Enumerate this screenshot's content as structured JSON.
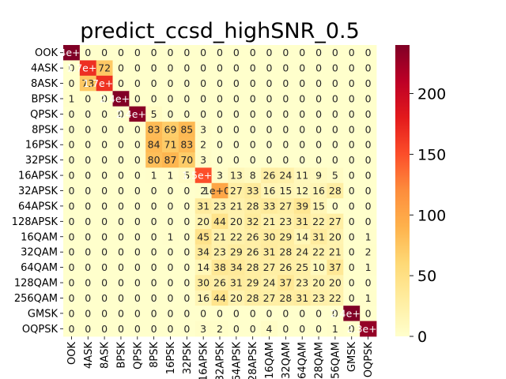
{
  "chart_data": {
    "type": "heatmap",
    "title": "predict_ccsd_highSNR_0.5",
    "xlabel": "",
    "ylabel": "",
    "x_categories": [
      "OOK",
      "4ASK",
      "8ASK",
      "BPSK",
      "QPSK",
      "8PSK",
      "16PSK",
      "32PSK",
      "16APSK",
      "32APSK",
      "64APSK",
      "128APSK",
      "16QAM",
      "32QAM",
      "64QAM",
      "128QAM",
      "256QAM",
      "GMSK",
      "OQPSK"
    ],
    "y_categories": [
      "OOK",
      "4ASK",
      "8ASK",
      "BPSK",
      "QPSK",
      "8PSK",
      "16PSK",
      "32PSK",
      "16APSK",
      "32APSK",
      "64APSK",
      "128APSK",
      "16QAM",
      "32QAM",
      "64QAM",
      "128QAM",
      "256QAM",
      "GMSK",
      "OQPSK"
    ],
    "values": [
      [
        240,
        0,
        0,
        0,
        0,
        0,
        0,
        0,
        0,
        0,
        0,
        0,
        0,
        0,
        0,
        0,
        0,
        0,
        0
      ],
      [
        0,
        168,
        72,
        0,
        0,
        0,
        0,
        0,
        0,
        0,
        0,
        0,
        0,
        0,
        0,
        0,
        0,
        0,
        0
      ],
      [
        0,
        73,
        167,
        0,
        0,
        0,
        0,
        0,
        0,
        0,
        0,
        0,
        0,
        0,
        0,
        0,
        0,
        0,
        0
      ],
      [
        1,
        0,
        0,
        239,
        0,
        0,
        0,
        0,
        0,
        0,
        0,
        0,
        0,
        0,
        0,
        0,
        0,
        0,
        0
      ],
      [
        0,
        0,
        0,
        0,
        235,
        5,
        0,
        0,
        0,
        0,
        0,
        0,
        0,
        0,
        0,
        0,
        0,
        0,
        0
      ],
      [
        0,
        0,
        0,
        0,
        0,
        83,
        69,
        85,
        3,
        0,
        0,
        0,
        0,
        0,
        0,
        0,
        0,
        0,
        0
      ],
      [
        0,
        0,
        0,
        0,
        0,
        84,
        71,
        83,
        2,
        0,
        0,
        0,
        0,
        0,
        0,
        0,
        0,
        0,
        0
      ],
      [
        0,
        0,
        0,
        0,
        0,
        80,
        87,
        70,
        3,
        0,
        0,
        0,
        0,
        0,
        0,
        0,
        0,
        0,
        0
      ],
      [
        0,
        0,
        0,
        0,
        0,
        1,
        1,
        5,
        150,
        3,
        13,
        8,
        26,
        24,
        11,
        9,
        5,
        0,
        0
      ],
      [
        0,
        0,
        0,
        0,
        0,
        0,
        0,
        0,
        2,
        100,
        27,
        33,
        16,
        15,
        12,
        16,
        28,
        0,
        0
      ],
      [
        0,
        0,
        0,
        0,
        0,
        0,
        0,
        0,
        31,
        23,
        21,
        28,
        33,
        27,
        39,
        15,
        0,
        0,
        0
      ],
      [
        0,
        0,
        0,
        0,
        0,
        0,
        0,
        0,
        20,
        44,
        20,
        32,
        21,
        23,
        31,
        22,
        27,
        0,
        0
      ],
      [
        0,
        0,
        0,
        0,
        0,
        0,
        1,
        0,
        45,
        21,
        22,
        26,
        30,
        29,
        14,
        31,
        20,
        0,
        1
      ],
      [
        0,
        0,
        0,
        0,
        0,
        0,
        0,
        0,
        34,
        23,
        29,
        26,
        31,
        28,
        24,
        22,
        21,
        0,
        2
      ],
      [
        0,
        0,
        0,
        0,
        0,
        0,
        0,
        0,
        14,
        38,
        34,
        28,
        27,
        26,
        25,
        10,
        37,
        0,
        1
      ],
      [
        0,
        0,
        0,
        0,
        0,
        0,
        0,
        0,
        30,
        26,
        31,
        29,
        24,
        37,
        23,
        20,
        20,
        0,
        0
      ],
      [
        0,
        0,
        0,
        0,
        0,
        0,
        0,
        0,
        16,
        44,
        20,
        28,
        27,
        28,
        31,
        23,
        22,
        0,
        1
      ],
      [
        0,
        0,
        0,
        0,
        0,
        0,
        0,
        0,
        0,
        0,
        0,
        0,
        0,
        0,
        0,
        0,
        0,
        240,
        0
      ],
      [
        0,
        0,
        0,
        0,
        0,
        0,
        0,
        0,
        3,
        2,
        0,
        0,
        4,
        0,
        0,
        0,
        1,
        0,
        230
      ]
    ],
    "cell_labels": [
      [
        "2.4e+02",
        "0",
        "0",
        "0",
        "0",
        "0",
        "0",
        "0",
        "0",
        "0",
        "0",
        "0",
        "0",
        "0",
        "0",
        "0",
        "0",
        "0",
        "0"
      ],
      [
        "0",
        "1.7e+02",
        "72",
        "0",
        "0",
        "0",
        "0",
        "0",
        "0",
        "0",
        "0",
        "0",
        "0",
        "0",
        "0",
        "0",
        "0",
        "0",
        "0"
      ],
      [
        "0",
        "73",
        "1.7e+02",
        "0",
        "0",
        "0",
        "0",
        "0",
        "0",
        "0",
        "0",
        "0",
        "0",
        "0",
        "0",
        "0",
        "0",
        "0",
        "0"
      ],
      [
        "1",
        "0",
        "0",
        "2.4e+02",
        "0",
        "0",
        "0",
        "0",
        "0",
        "0",
        "0",
        "0",
        "0",
        "0",
        "0",
        "0",
        "0",
        "0",
        "0"
      ],
      [
        "0",
        "0",
        "0",
        "0",
        "2.4e+02",
        "5",
        "0",
        "0",
        "0",
        "0",
        "0",
        "0",
        "0",
        "0",
        "0",
        "0",
        "0",
        "0",
        "0"
      ],
      [
        "0",
        "0",
        "0",
        "0",
        "0",
        "83",
        "69",
        "85",
        "3",
        "0",
        "0",
        "0",
        "0",
        "0",
        "0",
        "0",
        "0",
        "0",
        "0"
      ],
      [
        "0",
        "0",
        "0",
        "0",
        "0",
        "84",
        "71",
        "83",
        "2",
        "0",
        "0",
        "0",
        "0",
        "0",
        "0",
        "0",
        "0",
        "0",
        "0"
      ],
      [
        "0",
        "0",
        "0",
        "0",
        "0",
        "80",
        "87",
        "70",
        "3",
        "0",
        "0",
        "0",
        "0",
        "0",
        "0",
        "0",
        "0",
        "0",
        "0"
      ],
      [
        "0",
        "0",
        "0",
        "0",
        "0",
        "1",
        "1",
        "5",
        "1.5e+02",
        "3",
        "13",
        "8",
        "26",
        "24",
        "11",
        "9",
        "5",
        "0",
        "0"
      ],
      [
        "0",
        "0",
        "0",
        "0",
        "0",
        "0",
        "0",
        "0",
        "2",
        "1e+02",
        "27",
        "33",
        "16",
        "15",
        "12",
        "16",
        "28",
        "0",
        "0"
      ],
      [
        "0",
        "0",
        "0",
        "0",
        "0",
        "0",
        "0",
        "0",
        "31",
        "23",
        "21",
        "28",
        "33",
        "27",
        "39",
        "15",
        "0",
        "0",
        "0"
      ],
      [
        "0",
        "0",
        "0",
        "0",
        "0",
        "0",
        "0",
        "0",
        "20",
        "44",
        "20",
        "32",
        "21",
        "23",
        "31",
        "22",
        "27",
        "0",
        "0"
      ],
      [
        "0",
        "0",
        "0",
        "0",
        "0",
        "0",
        "1",
        "0",
        "45",
        "21",
        "22",
        "26",
        "30",
        "29",
        "14",
        "31",
        "20",
        "0",
        "1"
      ],
      [
        "0",
        "0",
        "0",
        "0",
        "0",
        "0",
        "0",
        "0",
        "34",
        "23",
        "29",
        "26",
        "31",
        "28",
        "24",
        "22",
        "21",
        "0",
        "2"
      ],
      [
        "0",
        "0",
        "0",
        "0",
        "0",
        "0",
        "0",
        "0",
        "14",
        "38",
        "34",
        "28",
        "27",
        "26",
        "25",
        "10",
        "37",
        "0",
        "1"
      ],
      [
        "0",
        "0",
        "0",
        "0",
        "0",
        "0",
        "0",
        "0",
        "30",
        "26",
        "31",
        "29",
        "24",
        "37",
        "23",
        "20",
        "20",
        "0",
        "0"
      ],
      [
        "0",
        "0",
        "0",
        "0",
        "0",
        "0",
        "0",
        "0",
        "16",
        "44",
        "20",
        "28",
        "27",
        "28",
        "31",
        "23",
        "22",
        "0",
        "1"
      ],
      [
        "0",
        "0",
        "0",
        "0",
        "0",
        "0",
        "0",
        "0",
        "0",
        "0",
        "0",
        "0",
        "0",
        "0",
        "0",
        "0",
        "0",
        "2.4e+02",
        "0"
      ],
      [
        "0",
        "0",
        "0",
        "0",
        "0",
        "0",
        "0",
        "0",
        "3",
        "2",
        "0",
        "0",
        "4",
        "0",
        "0",
        "0",
        "1",
        "0",
        "2.3e+02"
      ]
    ],
    "colormap": "YlOrRd",
    "vmin": 0,
    "vmax": 240,
    "colorbar_ticks": [
      0,
      50,
      100,
      150,
      200
    ],
    "grid": false,
    "legend": "colorbar-right"
  },
  "colors": {
    "low": "#ffffcc",
    "high": "#800026",
    "text_dark": "#262626",
    "text_light": "#ffffff"
  }
}
